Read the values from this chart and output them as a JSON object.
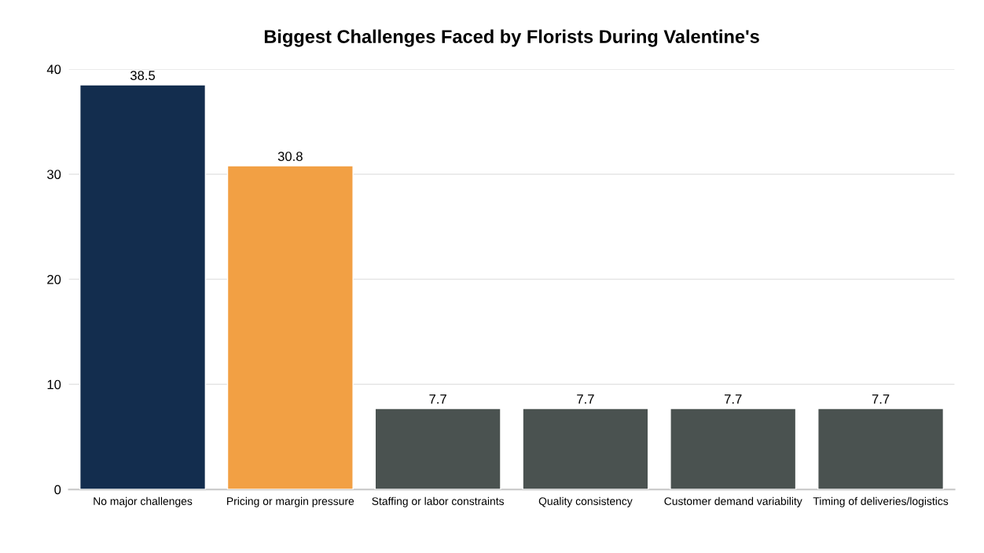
{
  "chart_data": {
    "type": "bar",
    "title": "Biggest Challenges Faced by Florists During Valentine's",
    "categories": [
      "No major challenges",
      "Pricing or margin pressure",
      "Staffing or labor constraints",
      "Quality consistency",
      "Customer demand variability",
      "Timing of deliveries/logistics"
    ],
    "values": [
      38.5,
      30.8,
      7.7,
      7.7,
      7.7,
      7.7
    ],
    "colors": [
      "#132d4e",
      "#f2a044",
      "#4a5250",
      "#4a5250",
      "#4a5250",
      "#4a5250"
    ],
    "ylim": [
      0,
      40
    ],
    "yticks": [
      0,
      10,
      20,
      30,
      40
    ],
    "grid": "y",
    "data_labels": true
  }
}
